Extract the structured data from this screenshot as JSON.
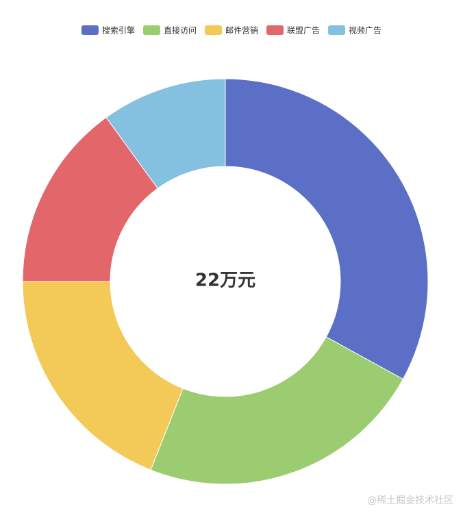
{
  "chart_data": {
    "type": "pie",
    "variant": "donut",
    "center_label": "22万元",
    "legend_position": "top-center",
    "categories": [
      "搜索引擎",
      "直接访问",
      "邮件营销",
      "联盟广告",
      "视频广告"
    ],
    "values": [
      33,
      23,
      19,
      15,
      10
    ],
    "colors": [
      "#5b6fc7",
      "#9ccc70",
      "#f3c957",
      "#e2666a",
      "#84c0e0"
    ]
  },
  "watermark": "@稀土掘金技术社区"
}
